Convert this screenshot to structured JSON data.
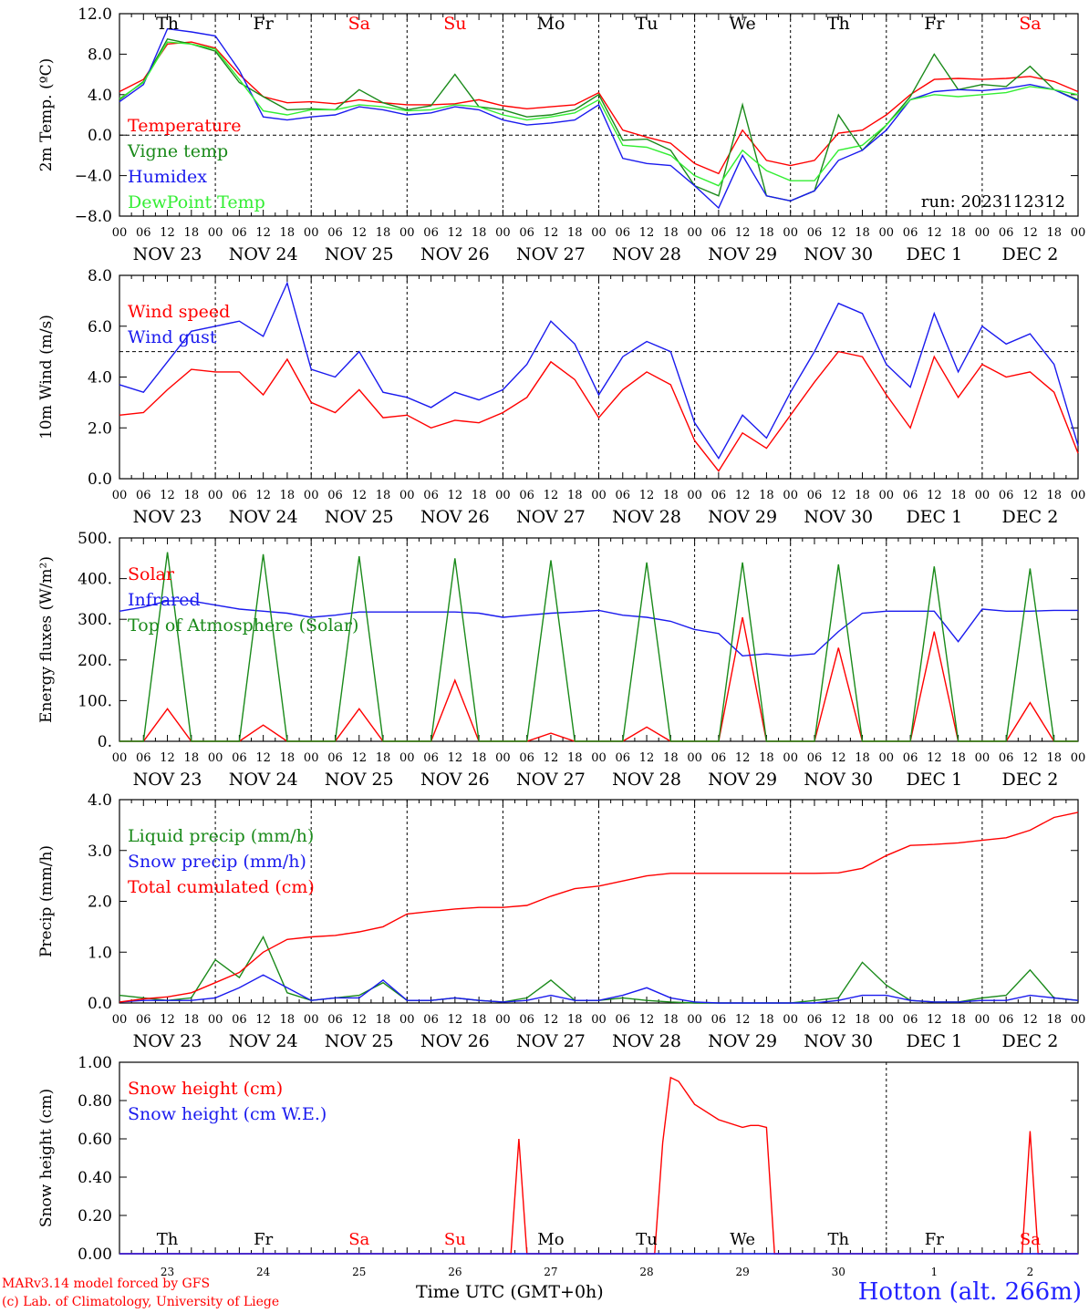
{
  "footer": {
    "model": "MARv3.14 model forced by GFS",
    "credit": "(c) Lab. of Climatology, University of Liege",
    "site": "Hotton (alt. 266m)",
    "time_axis_title": "Time UTC (GMT+0h)"
  },
  "run_label": "run: 2023112312",
  "days": {
    "weekday_labels": [
      "Th",
      "Fr",
      "Sa",
      "Su",
      "Mo",
      "Tu",
      "We",
      "Th",
      "Fr",
      "Sa"
    ],
    "weekend_flags": [
      false,
      false,
      true,
      true,
      false,
      false,
      false,
      false,
      false,
      true
    ],
    "date_labels": [
      "NOV 23",
      "NOV 24",
      "NOV 25",
      "NOV 26",
      "NOV 27",
      "NOV 28",
      "NOV 29",
      "NOV 30",
      "DEC  1",
      "DEC  2"
    ],
    "day_numbers": [
      "23",
      "24",
      "25",
      "26",
      "27",
      "28",
      "29",
      "30",
      "1",
      "2"
    ],
    "hour_labels": [
      "00",
      "06",
      "12",
      "18"
    ],
    "end_hour_label": "00"
  },
  "colors": {
    "red": "#ff0000",
    "green": "#1a8a1a",
    "blue": "#1a1aee",
    "light_green": "#33ee33",
    "weekend": "#ff0000"
  },
  "chart_data": [
    {
      "id": "temperature",
      "type": "line",
      "ylabel": "2m Temp. (ºC)",
      "ylim": [
        -8,
        12
      ],
      "yticks": [
        "12.0",
        "8.0",
        "4.0",
        "0.0",
        "−4.0",
        "−8.0"
      ],
      "ytick_values": [
        12,
        8,
        4,
        0,
        -4,
        -8
      ],
      "hline": 0,
      "x": [
        "2023-11-23 00:00",
        "2023-11-23 06:00",
        "2023-11-23 12:00",
        "2023-11-23 18:00",
        "2023-11-24 00:00",
        "2023-11-24 06:00",
        "2023-11-24 12:00",
        "2023-11-24 18:00",
        "2023-11-25 00:00",
        "2023-11-25 06:00",
        "2023-11-25 12:00",
        "2023-11-25 18:00",
        "2023-11-26 00:00",
        "2023-11-26 06:00",
        "2023-11-26 12:00",
        "2023-11-26 18:00",
        "2023-11-27 00:00",
        "2023-11-27 06:00",
        "2023-11-27 12:00",
        "2023-11-27 18:00",
        "2023-11-28 00:00",
        "2023-11-28 06:00",
        "2023-11-28 12:00",
        "2023-11-28 18:00",
        "2023-11-29 00:00",
        "2023-11-29 06:00",
        "2023-11-29 12:00",
        "2023-11-29 18:00",
        "2023-11-30 00:00",
        "2023-11-30 06:00",
        "2023-11-30 12:00",
        "2023-11-30 18:00",
        "2023-12-01 00:00",
        "2023-12-01 06:00",
        "2023-12-01 12:00",
        "2023-12-01 18:00",
        "2023-12-02 00:00",
        "2023-12-02 06:00",
        "2023-12-02 12:00",
        "2023-12-02 18:00",
        "2023-12-03 00:00"
      ],
      "series": [
        {
          "name": "Temperature",
          "color": "#ff0000",
          "values": [
            4.3,
            5.5,
            9.0,
            9.2,
            8.6,
            6.0,
            3.8,
            3.2,
            3.3,
            3.1,
            3.5,
            3.2,
            3.0,
            3.0,
            3.1,
            3.5,
            2.9,
            2.6,
            2.8,
            3.0,
            4.2,
            0.5,
            -0.2,
            -0.8,
            -2.8,
            -3.8,
            0.5,
            -2.5,
            -3.0,
            -2.5,
            0.2,
            0.5,
            2.0,
            4.0,
            5.5,
            5.6,
            5.5,
            5.6,
            5.8,
            5.3,
            4.3
          ]
        },
        {
          "name": "Vigne temp",
          "color": "#1a8a1a",
          "values": [
            3.5,
            5.3,
            9.5,
            9.0,
            8.3,
            5.2,
            3.8,
            2.5,
            2.6,
            2.5,
            4.5,
            3.2,
            2.5,
            2.9,
            6.0,
            2.8,
            2.5,
            1.8,
            2.0,
            2.5,
            4.0,
            -0.5,
            -0.4,
            -1.5,
            -5.0,
            -6.0,
            3.0,
            -6.0,
            -6.5,
            -5.5,
            2.0,
            -1.5,
            1.0,
            3.8,
            8.0,
            4.5,
            5.0,
            4.8,
            6.8,
            4.5,
            3.5
          ]
        },
        {
          "name": "Humidex",
          "color": "#1a1aee",
          "values": [
            3.3,
            5.0,
            10.5,
            10.2,
            9.8,
            6.4,
            1.8,
            1.5,
            1.8,
            2.0,
            2.8,
            2.5,
            2.0,
            2.2,
            2.8,
            2.5,
            1.5,
            1.0,
            1.2,
            1.5,
            3.0,
            -2.3,
            -2.8,
            -3.0,
            -5.0,
            -7.2,
            -2.0,
            -6.0,
            -6.5,
            -5.5,
            -2.5,
            -1.5,
            0.5,
            3.5,
            4.3,
            4.5,
            4.4,
            4.6,
            5.0,
            4.5,
            3.4
          ]
        },
        {
          "name": "DewPoint Temp",
          "color": "#33ee33",
          "values": [
            3.6,
            5.2,
            9.2,
            9.0,
            8.5,
            5.5,
            2.4,
            2.0,
            2.5,
            2.5,
            3.0,
            2.8,
            2.4,
            2.5,
            3.0,
            2.8,
            2.0,
            1.5,
            1.8,
            2.2,
            3.5,
            -1.0,
            -1.2,
            -2.0,
            -4.0,
            -5.0,
            -1.5,
            -3.5,
            -4.5,
            -4.5,
            -1.5,
            -1.0,
            1.0,
            3.5,
            4.0,
            3.8,
            4.0,
            4.2,
            4.8,
            4.5,
            4.0
          ]
        }
      ]
    },
    {
      "id": "wind",
      "type": "line",
      "ylabel": "10m Wind (m/s)",
      "ylim": [
        0,
        8
      ],
      "yticks": [
        "8.0",
        "6.0",
        "4.0",
        "2.0",
        "0.0"
      ],
      "ytick_values": [
        8,
        6,
        4,
        2,
        0
      ],
      "hline": 5,
      "x": [
        "2023-11-23 00:00",
        "2023-11-23 06:00",
        "2023-11-23 12:00",
        "2023-11-23 18:00",
        "2023-11-24 00:00",
        "2023-11-24 06:00",
        "2023-11-24 12:00",
        "2023-11-24 18:00",
        "2023-11-25 00:00",
        "2023-11-25 06:00",
        "2023-11-25 12:00",
        "2023-11-25 18:00",
        "2023-11-26 00:00",
        "2023-11-26 06:00",
        "2023-11-26 12:00",
        "2023-11-26 18:00",
        "2023-11-27 00:00",
        "2023-11-27 06:00",
        "2023-11-27 12:00",
        "2023-11-27 18:00",
        "2023-11-28 00:00",
        "2023-11-28 06:00",
        "2023-11-28 12:00",
        "2023-11-28 18:00",
        "2023-11-29 00:00",
        "2023-11-29 06:00",
        "2023-11-29 12:00",
        "2023-11-29 18:00",
        "2023-11-30 00:00",
        "2023-11-30 06:00",
        "2023-11-30 12:00",
        "2023-11-30 18:00",
        "2023-12-01 00:00",
        "2023-12-01 06:00",
        "2023-12-01 12:00",
        "2023-12-01 18:00",
        "2023-12-02 00:00",
        "2023-12-02 06:00",
        "2023-12-02 12:00",
        "2023-12-02 18:00",
        "2023-12-03 00:00"
      ],
      "series": [
        {
          "name": "Wind speed",
          "color": "#ff0000",
          "values": [
            2.5,
            2.6,
            3.5,
            4.3,
            4.2,
            4.2,
            3.3,
            4.7,
            3.0,
            2.6,
            3.5,
            2.4,
            2.5,
            2.0,
            2.3,
            2.2,
            2.6,
            3.2,
            4.6,
            3.9,
            2.4,
            3.5,
            4.2,
            3.7,
            1.5,
            0.3,
            1.8,
            1.2,
            2.5,
            3.8,
            5.0,
            4.8,
            3.3,
            2.0,
            4.8,
            3.2,
            4.5,
            4.0,
            4.2,
            3.4,
            1.0
          ]
        },
        {
          "name": "Wind gust",
          "color": "#1a1aee",
          "values": [
            3.7,
            3.4,
            4.6,
            5.8,
            6.0,
            6.2,
            5.6,
            7.7,
            4.3,
            4.0,
            5.0,
            3.4,
            3.2,
            2.8,
            3.4,
            3.1,
            3.5,
            4.5,
            6.2,
            5.3,
            3.3,
            4.8,
            5.4,
            5.0,
            2.2,
            0.8,
            2.5,
            1.6,
            3.4,
            5.0,
            6.9,
            6.5,
            4.5,
            3.6,
            6.5,
            4.2,
            6.0,
            5.3,
            5.7,
            4.5,
            1.3
          ]
        }
      ]
    },
    {
      "id": "energy",
      "type": "line",
      "ylabel": "Energy fluxes (W/m²)",
      "ylim": [
        0,
        500
      ],
      "yticks": [
        "500.",
        "400.",
        "300.",
        "200.",
        "100.",
        "0."
      ],
      "ytick_values": [
        500,
        400,
        300,
        200,
        100,
        0
      ],
      "x": [
        "2023-11-23 00:00",
        "2023-11-23 06:00",
        "2023-11-23 12:00",
        "2023-11-23 18:00",
        "2023-11-24 00:00",
        "2023-11-24 06:00",
        "2023-11-24 12:00",
        "2023-11-24 18:00",
        "2023-11-25 00:00",
        "2023-11-25 06:00",
        "2023-11-25 12:00",
        "2023-11-25 18:00",
        "2023-11-26 00:00",
        "2023-11-26 06:00",
        "2023-11-26 12:00",
        "2023-11-26 18:00",
        "2023-11-27 00:00",
        "2023-11-27 06:00",
        "2023-11-27 12:00",
        "2023-11-27 18:00",
        "2023-11-28 00:00",
        "2023-11-28 06:00",
        "2023-11-28 12:00",
        "2023-11-28 18:00",
        "2023-11-29 00:00",
        "2023-11-29 06:00",
        "2023-11-29 12:00",
        "2023-11-29 18:00",
        "2023-11-30 00:00",
        "2023-11-30 06:00",
        "2023-11-30 12:00",
        "2023-11-30 18:00",
        "2023-12-01 00:00",
        "2023-12-01 06:00",
        "2023-12-01 12:00",
        "2023-12-01 18:00",
        "2023-12-02 00:00",
        "2023-12-02 06:00",
        "2023-12-02 12:00",
        "2023-12-02 18:00",
        "2023-12-03 00:00"
      ],
      "series": [
        {
          "name": "Solar",
          "color": "#ff0000",
          "values": [
            0,
            0,
            80,
            0,
            0,
            0,
            40,
            0,
            0,
            0,
            80,
            0,
            0,
            0,
            150,
            0,
            0,
            0,
            20,
            0,
            0,
            0,
            35,
            0,
            0,
            0,
            305,
            0,
            0,
            0,
            230,
            0,
            0,
            0,
            270,
            0,
            0,
            0,
            95,
            0,
            0
          ]
        },
        {
          "name": "Infrared",
          "color": "#1a1aee",
          "values": [
            320,
            330,
            345,
            345,
            335,
            325,
            320,
            315,
            305,
            310,
            318,
            318,
            318,
            318,
            318,
            315,
            305,
            310,
            315,
            318,
            322,
            310,
            305,
            295,
            275,
            265,
            210,
            215,
            210,
            215,
            270,
            315,
            320,
            320,
            320,
            245,
            325,
            320,
            320,
            322,
            322
          ]
        },
        {
          "name": "Top of Atmosphere (Solar)",
          "color": "#1a8a1a",
          "values": [
            0,
            0,
            465,
            0,
            0,
            0,
            460,
            0,
            0,
            0,
            455,
            0,
            0,
            0,
            450,
            0,
            0,
            0,
            445,
            0,
            0,
            0,
            440,
            0,
            0,
            0,
            440,
            0,
            0,
            0,
            435,
            0,
            0,
            0,
            430,
            0,
            0,
            0,
            425,
            0,
            0
          ]
        }
      ]
    },
    {
      "id": "precip",
      "type": "line",
      "ylabel": "Precip (mm/h)",
      "ylim": [
        0,
        4
      ],
      "yticks": [
        "4.0",
        "3.0",
        "2.0",
        "1.0",
        "0.0"
      ],
      "ytick_values": [
        4,
        3,
        2,
        1,
        0
      ],
      "x": [
        "2023-11-23 00:00",
        "2023-11-23 06:00",
        "2023-11-23 12:00",
        "2023-11-23 18:00",
        "2023-11-24 00:00",
        "2023-11-24 06:00",
        "2023-11-24 12:00",
        "2023-11-24 18:00",
        "2023-11-25 00:00",
        "2023-11-25 06:00",
        "2023-11-25 12:00",
        "2023-11-25 18:00",
        "2023-11-26 00:00",
        "2023-11-26 06:00",
        "2023-11-26 12:00",
        "2023-11-26 18:00",
        "2023-11-27 00:00",
        "2023-11-27 06:00",
        "2023-11-27 12:00",
        "2023-11-27 18:00",
        "2023-11-28 00:00",
        "2023-11-28 06:00",
        "2023-11-28 12:00",
        "2023-11-28 18:00",
        "2023-11-29 00:00",
        "2023-11-29 06:00",
        "2023-11-29 12:00",
        "2023-11-29 18:00",
        "2023-11-30 00:00",
        "2023-11-30 06:00",
        "2023-11-30 12:00",
        "2023-11-30 18:00",
        "2023-12-01 00:00",
        "2023-12-01 06:00",
        "2023-12-01 12:00",
        "2023-12-01 18:00",
        "2023-12-02 00:00",
        "2023-12-02 06:00",
        "2023-12-02 12:00",
        "2023-12-02 18:00",
        "2023-12-03 00:00"
      ],
      "series": [
        {
          "name": "Liquid precip (mm/h)",
          "color": "#1a8a1a",
          "values": [
            0.15,
            0.1,
            0.05,
            0.1,
            0.85,
            0.5,
            1.3,
            0.2,
            0.05,
            0.1,
            0.15,
            0.4,
            0.05,
            0.05,
            0.1,
            0.05,
            0.02,
            0.1,
            0.45,
            0.05,
            0.05,
            0.1,
            0.05,
            0.02,
            0.0,
            0.0,
            0.0,
            0.0,
            0.0,
            0.05,
            0.1,
            0.8,
            0.35,
            0.05,
            0.02,
            0.02,
            0.1,
            0.15,
            0.65,
            0.1,
            0.05
          ]
        },
        {
          "name": "Snow precip (mm/h)",
          "color": "#1a1aee",
          "values": [
            0.02,
            0.05,
            0.05,
            0.05,
            0.1,
            0.3,
            0.55,
            0.3,
            0.05,
            0.1,
            0.1,
            0.45,
            0.05,
            0.05,
            0.1,
            0.05,
            0.02,
            0.05,
            0.15,
            0.05,
            0.05,
            0.15,
            0.3,
            0.1,
            0.02,
            0.0,
            0.0,
            0.0,
            0.0,
            0.0,
            0.05,
            0.15,
            0.15,
            0.05,
            0.02,
            0.02,
            0.05,
            0.05,
            0.15,
            0.1,
            0.05
          ]
        },
        {
          "name": "Total cumulated (cm)",
          "color": "#ff0000",
          "values": [
            0.02,
            0.08,
            0.12,
            0.2,
            0.4,
            0.6,
            1.0,
            1.25,
            1.3,
            1.33,
            1.4,
            1.5,
            1.75,
            1.8,
            1.85,
            1.88,
            1.88,
            1.92,
            2.1,
            2.25,
            2.3,
            2.4,
            2.5,
            2.55,
            2.55,
            2.55,
            2.55,
            2.55,
            2.55,
            2.55,
            2.56,
            2.65,
            2.9,
            3.1,
            3.12,
            3.15,
            3.2,
            3.25,
            3.4,
            3.65,
            3.75
          ]
        }
      ]
    },
    {
      "id": "snow",
      "type": "line",
      "ylabel": "Snow height (cm)",
      "ylim": [
        0,
        1
      ],
      "yticks": [
        "1.00",
        "0.80",
        "0.60",
        "0.40",
        "0.20",
        "0.00"
      ],
      "ytick_values": [
        1,
        0.8,
        0.6,
        0.4,
        0.2,
        0
      ],
      "x_hours": [
        0,
        96,
        98,
        100,
        102,
        132,
        134,
        136,
        138,
        140,
        144,
        150,
        156,
        158,
        160,
        162,
        164,
        166,
        226,
        228,
        230,
        232,
        240
      ],
      "series": [
        {
          "name": "Snow height (cm)",
          "color": "#ff0000",
          "values": [
            0,
            0,
            0,
            0.6,
            0,
            0,
            0,
            0.58,
            0.92,
            0.9,
            0.78,
            0.7,
            0.66,
            0.67,
            0.67,
            0.66,
            0,
            0,
            0,
            0.64,
            0,
            0,
            0
          ]
        },
        {
          "name": "Snow height (cm W.E.)",
          "color": "#1a1aee",
          "values": [
            0,
            0,
            0,
            0,
            0,
            0,
            0,
            0,
            0,
            0,
            0,
            0,
            0,
            0,
            0,
            0,
            0,
            0,
            0,
            0,
            0,
            0,
            0
          ]
        }
      ]
    }
  ]
}
